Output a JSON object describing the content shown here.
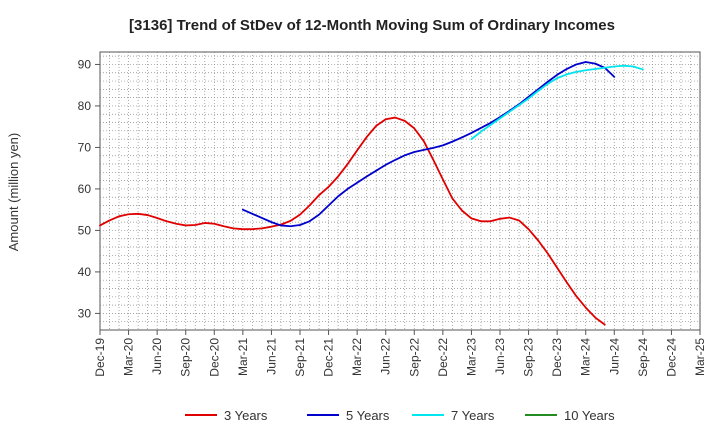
{
  "chart_data": {
    "type": "line",
    "title": "[3136]  Trend of StDev of 12-Month Moving Sum of Ordinary Incomes",
    "ylabel": "Amount (million yen)",
    "xlabel": "",
    "ylim": [
      26,
      93
    ],
    "yticks": [
      30,
      40,
      50,
      60,
      70,
      80,
      90
    ],
    "x_months": [
      "2019-12",
      "2020-01",
      "2020-02",
      "2020-03",
      "2020-04",
      "2020-05",
      "2020-06",
      "2020-07",
      "2020-08",
      "2020-09",
      "2020-10",
      "2020-11",
      "2020-12",
      "2021-01",
      "2021-02",
      "2021-03",
      "2021-04",
      "2021-05",
      "2021-06",
      "2021-07",
      "2021-08",
      "2021-09",
      "2021-10",
      "2021-11",
      "2021-12",
      "2022-01",
      "2022-02",
      "2022-03",
      "2022-04",
      "2022-05",
      "2022-06",
      "2022-07",
      "2022-08",
      "2022-09",
      "2022-10",
      "2022-11",
      "2022-12",
      "2023-01",
      "2023-02",
      "2023-03",
      "2023-04",
      "2023-05",
      "2023-06",
      "2023-07",
      "2023-08",
      "2023-09",
      "2023-10",
      "2023-11",
      "2023-12",
      "2024-01",
      "2024-02",
      "2024-03",
      "2024-04",
      "2024-05",
      "2024-06",
      "2024-07",
      "2024-08",
      "2024-09",
      "2024-10",
      "2024-11",
      "2024-12",
      "2025-01",
      "2025-02",
      "2025-03"
    ],
    "x_tick_labels": [
      "Dec-19",
      "Mar-20",
      "Jun-20",
      "Sep-20",
      "Dec-20",
      "Mar-21",
      "Jun-21",
      "Sep-21",
      "Dec-21",
      "Mar-22",
      "Jun-22",
      "Sep-22",
      "Dec-22",
      "Mar-23",
      "Jun-23",
      "Sep-23",
      "Dec-23",
      "Mar-24",
      "Jun-24",
      "Sep-24",
      "Dec-24",
      "Mar-25"
    ],
    "grid": true,
    "legend_position": "bottom",
    "series": [
      {
        "name": "3 Years",
        "color": "#e00000",
        "start_index": 0,
        "values": [
          51.2,
          52.4,
          53.4,
          53.9,
          54.0,
          53.7,
          53.0,
          52.2,
          51.6,
          51.2,
          51.3,
          51.8,
          51.6,
          51.0,
          50.5,
          50.3,
          50.3,
          50.5,
          50.9,
          51.4,
          52.3,
          53.8,
          56.0,
          58.5,
          60.5,
          63.0,
          66.0,
          69.3,
          72.5,
          75.2,
          76.8,
          77.2,
          76.4,
          74.6,
          71.5,
          67.0,
          62.3,
          57.7,
          54.8,
          52.9,
          52.2,
          52.2,
          52.8,
          53.1,
          52.4,
          50.3,
          47.6,
          44.5,
          41.0,
          37.5,
          34.2,
          31.4,
          29.0,
          27.3
        ]
      },
      {
        "name": "5 Years",
        "color": "#0000cc",
        "start_index": 15,
        "values": [
          55.0,
          54.0,
          53.0,
          52.0,
          51.2,
          51.0,
          51.3,
          52.2,
          53.8,
          56.0,
          58.2,
          60.0,
          61.5,
          63.0,
          64.4,
          65.8,
          67.0,
          68.1,
          68.9,
          69.4,
          69.9,
          70.5,
          71.4,
          72.4,
          73.5,
          74.7,
          75.9,
          77.3,
          78.8,
          80.4,
          82.2,
          84.0,
          85.8,
          87.5,
          88.9,
          90.0,
          90.6,
          90.2,
          89.2,
          87.0
        ]
      },
      {
        "name": "7 Years",
        "color": "#00e5ee",
        "start_index": 39,
        "values": [
          72.0,
          73.8,
          75.4,
          77.0,
          78.6,
          80.2,
          81.8,
          83.6,
          85.3,
          86.7,
          87.6,
          88.2,
          88.6,
          88.9,
          89.2,
          89.5,
          89.7,
          89.5,
          88.8
        ]
      },
      {
        "name": "10 Years",
        "color": "#228b22",
        "start_index": 0,
        "values": []
      }
    ]
  }
}
